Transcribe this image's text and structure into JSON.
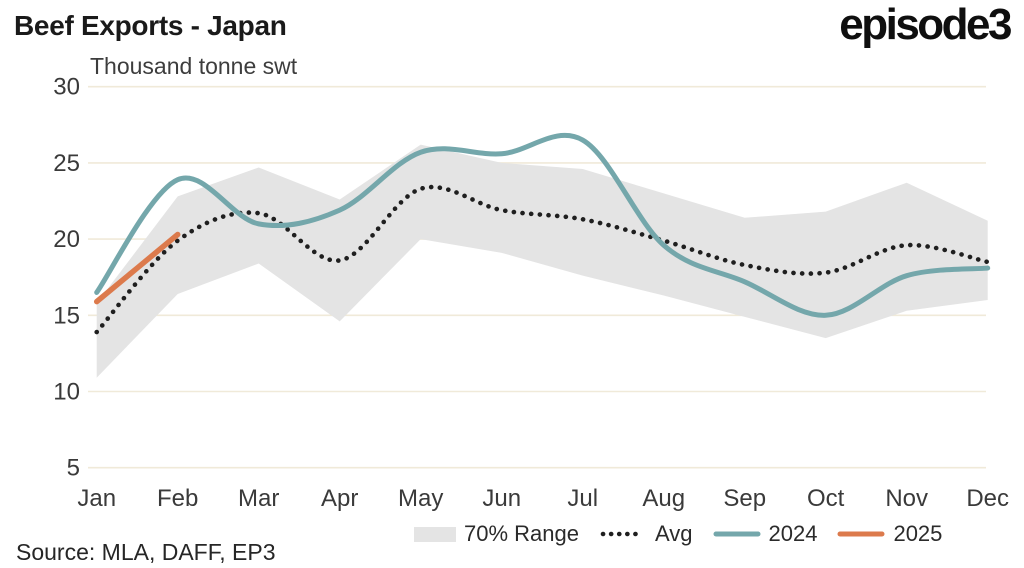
{
  "header": {
    "title": "Beef Exports - Japan",
    "brand": "episode3"
  },
  "footer": {
    "source": "Source: MLA, DAFF, EP3"
  },
  "chart_data": {
    "type": "line",
    "title": "Beef Exports - Japan",
    "subtitle": "Thousand tonne swt",
    "categories": [
      "Jan",
      "Feb",
      "Mar",
      "Apr",
      "May",
      "Jun",
      "Jul",
      "Aug",
      "Sep",
      "Oct",
      "Nov",
      "Dec"
    ],
    "ylim": [
      5,
      30
    ],
    "yticks": [
      30,
      25,
      20,
      15,
      10,
      5
    ],
    "grid": "horizontal",
    "grid_color": "#f0ead9",
    "legend_position": "bottom",
    "band": {
      "name": "70% Range",
      "color": "#e4e4e4",
      "upper": [
        15.8,
        22.8,
        24.7,
        22.6,
        26.2,
        25.0,
        24.6,
        23.0,
        21.4,
        21.8,
        23.7,
        21.2
      ],
      "lower": [
        10.9,
        16.4,
        18.4,
        14.6,
        20.0,
        19.1,
        17.6,
        16.3,
        14.9,
        13.5,
        15.3,
        16.0
      ]
    },
    "series": [
      {
        "name": "Avg",
        "style": "dotted",
        "color": "#1f1f1f",
        "values": [
          13.9,
          19.9,
          21.7,
          18.6,
          23.3,
          21.9,
          21.3,
          19.9,
          18.3,
          17.8,
          19.6,
          18.5
        ]
      },
      {
        "name": "2024",
        "style": "solid",
        "color": "#74a7ab",
        "values": [
          16.5,
          23.9,
          21.0,
          21.9,
          25.7,
          25.6,
          26.5,
          19.6,
          17.2,
          15.0,
          17.6,
          18.1
        ]
      },
      {
        "name": "2025",
        "style": "solid",
        "color": "#dc7a4c",
        "values": [
          15.9,
          20.3
        ]
      }
    ]
  }
}
